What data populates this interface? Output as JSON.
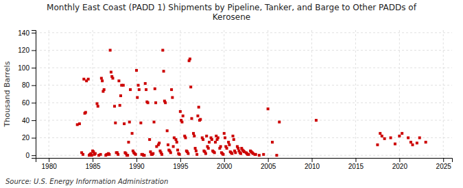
{
  "chart_data": {
    "type": "scatter",
    "title": "Monthly East Coast (PADD 1) Shipments by Pipeline, Tanker, and Barge to Other PADDs of\nKerosene",
    "ylabel": "Thousand Barrels",
    "source": "Source: U.S. Energy Information Administration",
    "color": "#cc0000",
    "marker": "square",
    "grid": true,
    "xlim": [
      1978.5,
      2026
    ],
    "xticks": [
      1980,
      1985,
      1990,
      1995,
      2000,
      2005,
      2010,
      2015,
      2020,
      2025
    ],
    "ylim": [
      -3,
      143
    ],
    "yticks": [
      0,
      20,
      40,
      60,
      80,
      100,
      120,
      140
    ],
    "x": [
      1983.25,
      1983.5,
      1983.75,
      1983.9,
      1984.0,
      1984.1,
      1984.2,
      1984.3,
      1984.5,
      1984.6,
      1984.7,
      1984.8,
      1984.9,
      1985.0,
      1985.1,
      1985.2,
      1985.3,
      1985.5,
      1985.6,
      1985.7,
      1985.9,
      1986.0,
      1986.1,
      1986.2,
      1986.3,
      1986.5,
      1986.6,
      1986.7,
      1986.8,
      1986.9,
      1987.0,
      1987.1,
      1987.2,
      1987.3,
      1987.5,
      1987.6,
      1987.7,
      1987.8,
      1987.9,
      1988.0,
      1988.1,
      1988.2,
      1988.3,
      1988.5,
      1988.6,
      1988.7,
      1988.8,
      1988.9,
      1989.0,
      1989.1,
      1989.2,
      1989.3,
      1989.5,
      1989.6,
      1989.7,
      1989.8,
      1989.9,
      1990.0,
      1990.1,
      1990.2,
      1990.3,
      1990.5,
      1990.6,
      1990.7,
      1990.8,
      1990.9,
      1991.0,
      1991.1,
      1991.2,
      1991.3,
      1991.5,
      1991.6,
      1991.7,
      1991.8,
      1991.9,
      1992.0,
      1992.1,
      1992.2,
      1992.3,
      1992.5,
      1992.6,
      1992.7,
      1992.8,
      1992.9,
      1993.0,
      1993.1,
      1993.2,
      1993.3,
      1993.5,
      1993.6,
      1993.7,
      1993.8,
      1993.9,
      1994.0,
      1994.1,
      1994.2,
      1994.3,
      1994.5,
      1994.6,
      1994.7,
      1994.8,
      1994.9,
      1995.0,
      1995.1,
      1995.2,
      1995.3,
      1995.5,
      1995.6,
      1995.7,
      1995.8,
      1995.9,
      1996.0,
      1996.1,
      1996.2,
      1996.3,
      1996.5,
      1996.6,
      1996.7,
      1996.8,
      1996.9,
      1997.0,
      1997.1,
      1997.2,
      1997.3,
      1997.5,
      1997.6,
      1997.7,
      1997.8,
      1997.9,
      1998.0,
      1998.1,
      1998.2,
      1998.3,
      1998.5,
      1998.6,
      1998.7,
      1998.8,
      1998.9,
      1999.0,
      1999.1,
      1999.2,
      1999.3,
      1999.5,
      1999.6,
      1999.7,
      1999.8,
      1999.9,
      2000.0,
      2000.1,
      2000.2,
      2000.3,
      2000.5,
      2000.6,
      2000.7,
      2000.8,
      2000.9,
      2001.0,
      2001.1,
      2001.2,
      2001.3,
      2001.5,
      2001.6,
      2001.7,
      2001.8,
      2001.9,
      2002.0,
      2002.1,
      2002.2,
      2002.3,
      2002.5,
      2002.6,
      2002.7,
      2002.8,
      2003.0,
      2003.1,
      2003.2,
      2003.3,
      2003.5,
      2003.6,
      2004.0,
      2004.5,
      2005.0,
      2005.5,
      2006.0,
      2006.3,
      2010.5,
      2017.5,
      2017.8,
      2018.0,
      2018.3,
      2019.0,
      2019.5,
      2020.0,
      2020.3,
      2021.0,
      2021.3,
      2021.5,
      2022.0,
      2022.3,
      2023.0
    ],
    "values": [
      35,
      36,
      3,
      1,
      87,
      48,
      49,
      85,
      87,
      0,
      1,
      2,
      0,
      5,
      4,
      1,
      2,
      59,
      56,
      0,
      1,
      88,
      85,
      73,
      75,
      0,
      1,
      1,
      2,
      1,
      120,
      95,
      90,
      88,
      56,
      37,
      3,
      3,
      1,
      85,
      57,
      68,
      80,
      80,
      36,
      3,
      2,
      0,
      0,
      15,
      38,
      75,
      25,
      5,
      3,
      2,
      1,
      97,
      66,
      80,
      75,
      37,
      1,
      1,
      0,
      0,
      82,
      75,
      61,
      60,
      18,
      4,
      1,
      1,
      2,
      38,
      76,
      60,
      10,
      12,
      14,
      5,
      3,
      1,
      120,
      96,
      62,
      60,
      28,
      12,
      6,
      5,
      3,
      75,
      66,
      10,
      20,
      18,
      15,
      6,
      2,
      1,
      50,
      40,
      38,
      45,
      22,
      20,
      5,
      4,
      2,
      108,
      110,
      78,
      42,
      25,
      22,
      8,
      5,
      1,
      45,
      55,
      40,
      41,
      20,
      18,
      5,
      4,
      2,
      22,
      10,
      8,
      15,
      20,
      18,
      5,
      4,
      3,
      15,
      22,
      18,
      20,
      8,
      10,
      3,
      2,
      1,
      25,
      20,
      10,
      8,
      15,
      12,
      4,
      3,
      2,
      22,
      18,
      5,
      3,
      10,
      8,
      5,
      3,
      2,
      8,
      6,
      5,
      4,
      3,
      2,
      1,
      1,
      5,
      4,
      3,
      2,
      1,
      1,
      0,
      1,
      53,
      15,
      0,
      38,
      40,
      12,
      25,
      22,
      19,
      20,
      13,
      22,
      25,
      20,
      15,
      12,
      14,
      20,
      15
    ]
  }
}
